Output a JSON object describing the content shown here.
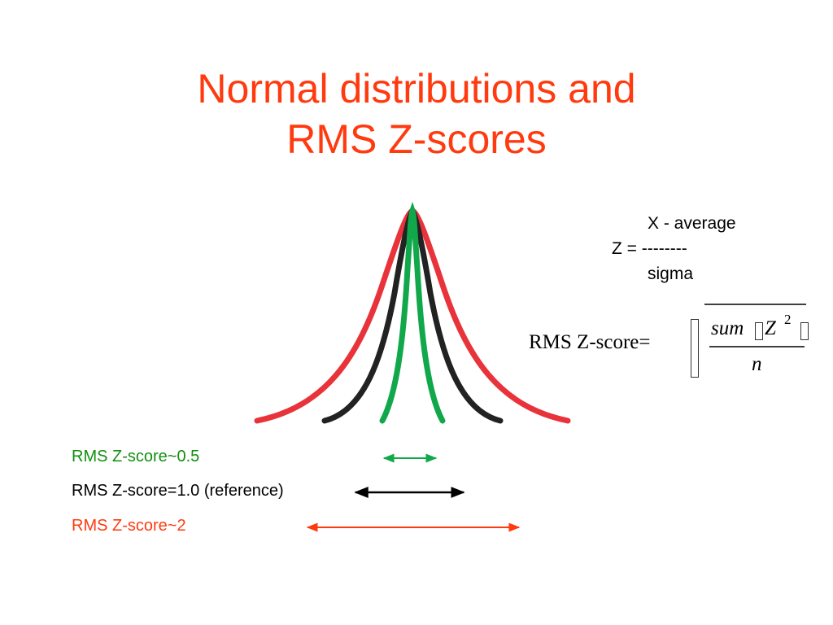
{
  "title": {
    "line1": "Normal distributions and",
    "line2": "RMS Z-scores",
    "color": "#ff3a0f"
  },
  "z_definition": {
    "numerator": "X - average",
    "lhs": "Z = --------",
    "denominator": "sigma"
  },
  "rms_formula": {
    "label": "RMS Z-score=",
    "numerator_sum": "sum",
    "numerator_var": "Z",
    "exponent": "2",
    "denominator": "n"
  },
  "curves": [
    {
      "name": "red",
      "color": "#e8333a"
    },
    {
      "name": "black",
      "color": "#222222"
    },
    {
      "name": "green",
      "color": "#10a84a"
    }
  ],
  "legend": [
    {
      "label": "RMS Z-score~0.5",
      "color": "#109010"
    },
    {
      "label": "RMS Z-score=1.0 (reference)",
      "color": "#000000"
    },
    {
      "label": "RMS Z-score~2",
      "color": "#ff3a0f"
    }
  ]
}
